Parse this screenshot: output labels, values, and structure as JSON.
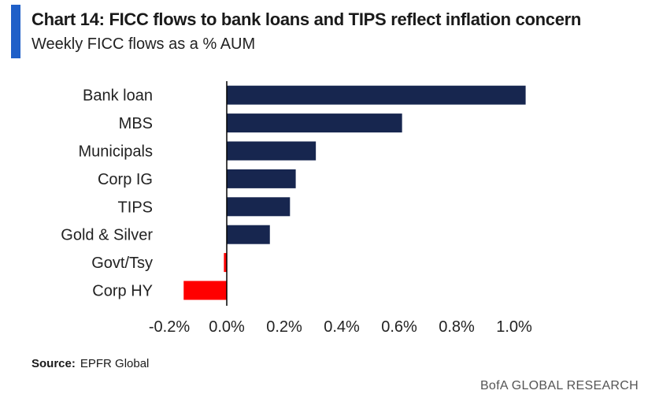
{
  "header": {
    "title": "Chart 14: FICC flows to bank loans and TIPS reflect inflation concern",
    "subtitle": "Weekly FICC flows as a % AUM"
  },
  "footer": {
    "source_label": "Source:",
    "source_value": "EPFR Global",
    "brand": "BofA GLOBAL RESEARCH"
  },
  "colors": {
    "accent": "#1f5fc8",
    "positive_bar": "#17264f",
    "negative_bar": "#ff0000",
    "axis": "#000000"
  },
  "chart_data": {
    "type": "bar",
    "orientation": "horizontal",
    "title": "Chart 14: FICC flows to bank loans and TIPS reflect inflation concern",
    "subtitle": "Weekly FICC flows as a % AUM",
    "categories": [
      "Bank loan",
      "MBS",
      "Municipals",
      "Corp IG",
      "TIPS",
      "Gold & Silver",
      "Govt/Tsy",
      "Corp HY"
    ],
    "values": [
      1.04,
      0.61,
      0.31,
      0.24,
      0.22,
      0.15,
      -0.01,
      -0.15
    ],
    "xlim": [
      -0.2,
      1.0
    ],
    "xticks": [
      -0.2,
      0.0,
      0.2,
      0.4,
      0.6,
      0.8,
      1.0
    ],
    "xtick_labels": [
      "-0.2%",
      "0.0%",
      "0.2%",
      "0.4%",
      "0.6%",
      "0.8%",
      "1.0%"
    ],
    "xlabel": "",
    "ylabel": "",
    "grid": false,
    "legend": "none"
  }
}
